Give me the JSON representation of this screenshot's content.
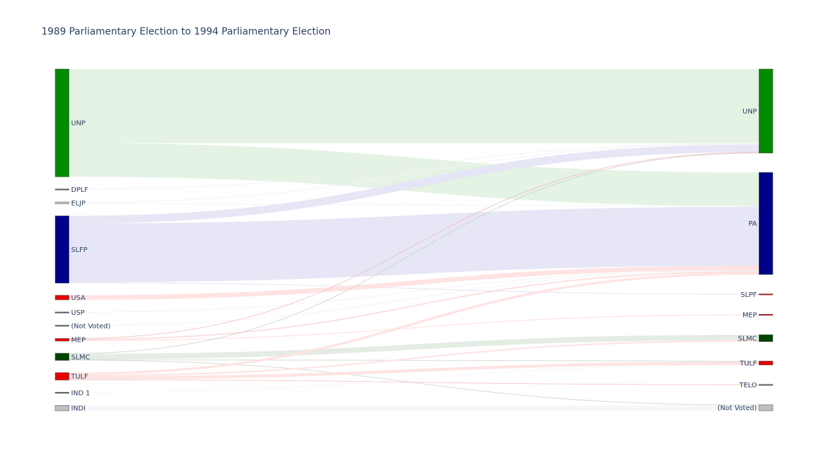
{
  "chart_data": {
    "type": "sankey",
    "title": "1989 Parliamentary Election to 1994 Parliamentary Election",
    "source_nodes": [
      {
        "id": "UNP",
        "label": "UNP",
        "color": "#008b00"
      },
      {
        "id": "DPLF",
        "label": "DPLF",
        "color": "#696969"
      },
      {
        "id": "ELJP",
        "label": "ELJP",
        "color": "#c0c0c0"
      },
      {
        "id": "SLFP",
        "label": "SLFP",
        "color": "#00008b"
      },
      {
        "id": "USA",
        "label": "USA",
        "color": "#e50000"
      },
      {
        "id": "USP",
        "label": "USP",
        "color": "#696969"
      },
      {
        "id": "NV89",
        "label": "(Not Voted)",
        "color": "#696969"
      },
      {
        "id": "MEP89",
        "label": "MEP",
        "color": "#e50000"
      },
      {
        "id": "SLMC89",
        "label": "SLMC",
        "color": "#004400"
      },
      {
        "id": "TULF89",
        "label": "TULF",
        "color": "#e50000"
      },
      {
        "id": "IND1",
        "label": "IND 1",
        "color": "#696969"
      },
      {
        "id": "INDI",
        "label": "INDI",
        "color": "#c0c0c0"
      }
    ],
    "target_nodes": [
      {
        "id": "UNP94",
        "label": "UNP",
        "color": "#008b00"
      },
      {
        "id": "PA",
        "label": "PA",
        "color": "#00008b"
      },
      {
        "id": "SLPF",
        "label": "SLPF",
        "color": "#e50000"
      },
      {
        "id": "MEP94",
        "label": "MEP",
        "color": "#e50000"
      },
      {
        "id": "SLMC94",
        "label": "SLMC",
        "color": "#004400"
      },
      {
        "id": "TULF94",
        "label": "TULF",
        "color": "#e50000"
      },
      {
        "id": "TELO",
        "label": "TELO",
        "color": "#696969"
      },
      {
        "id": "NV94",
        "label": "(Not Voted)",
        "color": "#c0c0c0"
      }
    ],
    "links": [
      {
        "source": "UNP",
        "target": "UNP94",
        "value": 97,
        "color": "#e3f2e3"
      },
      {
        "source": "UNP",
        "target": "PA",
        "value": 44,
        "color": "#e3f2e3"
      },
      {
        "source": "DPLF",
        "target": "UNP94",
        "value": 0.3,
        "color": "#f0f0f0"
      },
      {
        "source": "ELJP",
        "target": "UNP94",
        "value": 1,
        "color": "#f4f4f4"
      },
      {
        "source": "ELJP",
        "target": "PA",
        "value": 1,
        "color": "#f4f4f4"
      },
      {
        "source": "SLFP",
        "target": "UNP94",
        "value": 10,
        "color": "#e5e5f5"
      },
      {
        "source": "SLFP",
        "target": "PA",
        "value": 77,
        "color": "#e5e5f5"
      },
      {
        "source": "SLFP",
        "target": "SLPF",
        "value": 1,
        "color": "#e5e5f5"
      },
      {
        "source": "USA",
        "target": "PA",
        "value": 6,
        "color": "#ffe1e1"
      },
      {
        "source": "USP",
        "target": "PA",
        "value": 0.5,
        "color": "#f0f0f0"
      },
      {
        "source": "NV89",
        "target": "PA",
        "value": 0.5,
        "color": "#f0f0f0"
      },
      {
        "source": "MEP89",
        "target": "UNP94",
        "value": 0.8,
        "color": "#f5baba"
      },
      {
        "source": "MEP89",
        "target": "PA",
        "value": 1.5,
        "color": "#fcd9d9"
      },
      {
        "source": "MEP89",
        "target": "MEP94",
        "value": 1.2,
        "color": "#fde3e3"
      },
      {
        "source": "SLMC89",
        "target": "UNP94",
        "value": 0.8,
        "color": "#c9d6c9"
      },
      {
        "source": "SLMC89",
        "target": "SLMC94",
        "value": 7,
        "color": "#e3ebe3"
      },
      {
        "source": "SLMC89",
        "target": "TULF94",
        "value": 0.8,
        "color": "#c9d6c9"
      },
      {
        "source": "SLMC89",
        "target": "NV94",
        "value": 0.8,
        "color": "#c9d6c9"
      },
      {
        "source": "TULF89",
        "target": "PA",
        "value": 3,
        "color": "#ffe1e1"
      },
      {
        "source": "TULF89",
        "target": "SLMC94",
        "value": 2,
        "color": "#ffe1e1"
      },
      {
        "source": "TULF89",
        "target": "TULF94",
        "value": 4,
        "color": "#ffe1e1"
      },
      {
        "source": "TULF89",
        "target": "TELO",
        "value": 0.8,
        "color": "#f5c4c4"
      },
      {
        "source": "IND1",
        "target": "TULF94",
        "value": 0.3,
        "color": "#f4f4f4"
      },
      {
        "source": "INDI",
        "target": "NV94",
        "value": 7,
        "color": "#f7f7f7"
      }
    ]
  }
}
